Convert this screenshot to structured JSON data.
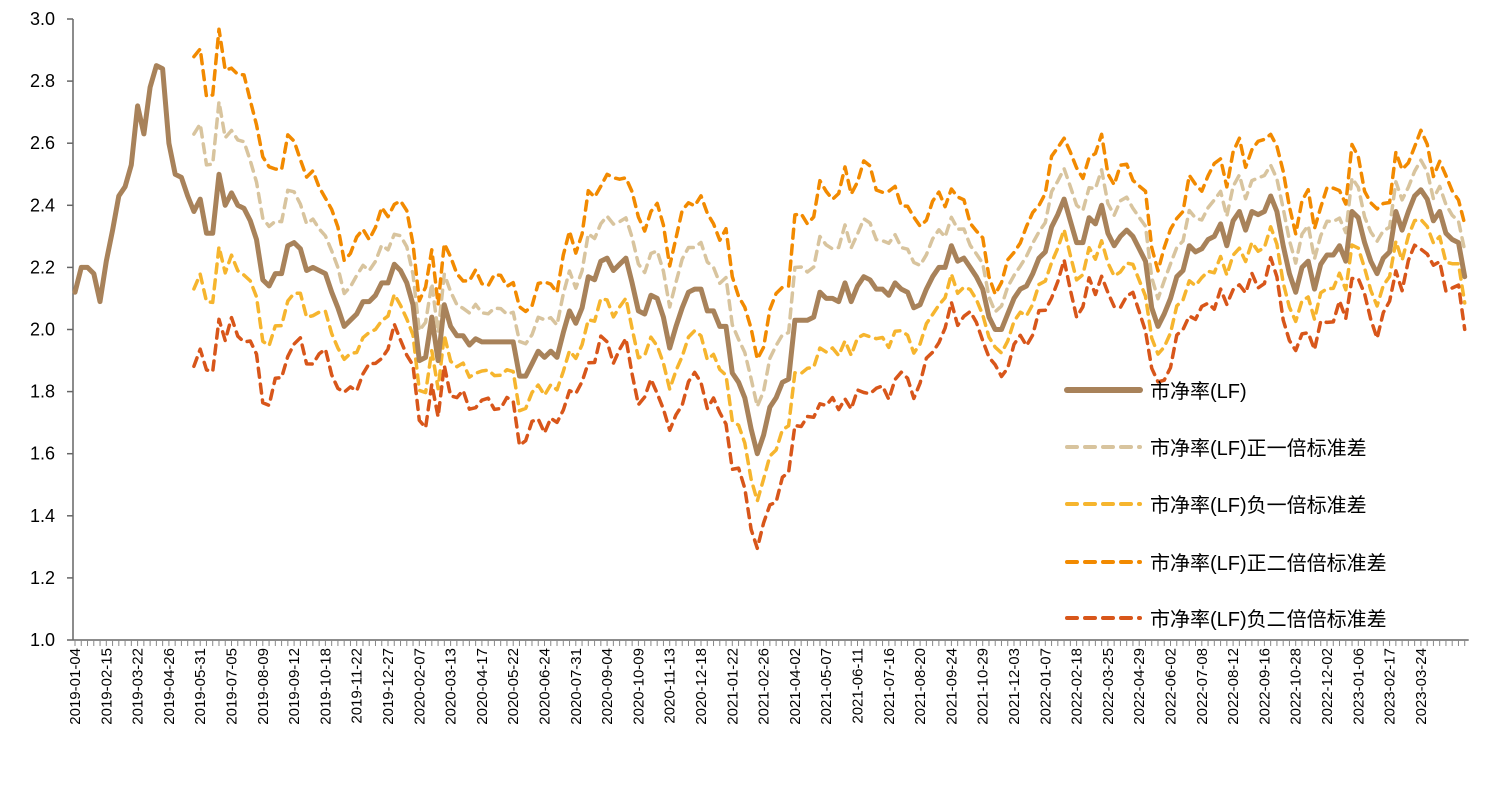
{
  "chart_data": {
    "type": "line",
    "title": "",
    "xlabel": "",
    "ylabel": "",
    "ylim": [
      1.0,
      3.0
    ],
    "ytick_step": 0.2,
    "yticks": [
      "1.0",
      "1.2",
      "1.4",
      "1.6",
      "1.8",
      "2.0",
      "2.2",
      "2.4",
      "2.6",
      "2.8",
      "3.0"
    ],
    "x_tick_every": 5,
    "x_tick_labels": [
      "2019-01-04",
      "2019-02-15",
      "2019-03-22",
      "2019-04-26",
      "2019-05-31",
      "2019-07-05",
      "2019-08-09",
      "2019-09-12",
      "2019-10-18",
      "2019-11-22",
      "2019-12-27",
      "2020-02-07",
      "2020-03-13",
      "2020-04-17",
      "2020-05-22",
      "2020-06-24",
      "2020-07-31",
      "2020-09-04",
      "2020-10-09",
      "2020-11-13",
      "2020-12-18",
      "2021-01-22",
      "2021-02-26",
      "2021-04-02",
      "2021-05-07",
      "2021-06-11",
      "2021-07-16",
      "2021-08-20",
      "2021-09-24",
      "2021-10-29",
      "2021-12-03",
      "2022-01-07",
      "2022-02-18",
      "2022-03-25",
      "2022-04-29",
      "2022-06-02",
      "2022-07-08",
      "2022-08-12",
      "2022-09-16",
      "2022-10-28",
      "2022-12-02",
      "2023-01-06",
      "2023-02-17",
      "2023-03-24"
    ],
    "grid": false,
    "legend_position": "right",
    "series": [
      {
        "name": "市净率(LF)",
        "color": "#A8825A",
        "style": "solid",
        "multiplier": 0,
        "values": [
          2.12,
          2.2,
          2.2,
          2.18,
          2.09,
          2.22,
          2.32,
          2.43,
          2.46,
          2.53,
          2.72,
          2.63,
          2.78,
          2.85,
          2.84,
          2.6,
          2.5,
          2.49,
          2.43,
          2.38,
          2.42,
          2.31,
          2.31,
          2.5,
          2.4,
          2.44,
          2.4,
          2.39,
          2.35,
          2.29,
          2.16,
          2.14,
          2.18,
          2.18,
          2.27,
          2.28,
          2.26,
          2.19,
          2.2,
          2.19,
          2.18,
          2.12,
          2.07,
          2.01,
          2.03,
          2.05,
          2.09,
          2.09,
          2.11,
          2.15,
          2.15,
          2.21,
          2.19,
          2.15,
          2.08,
          1.9,
          1.91,
          2.04,
          1.9,
          2.08,
          2.01,
          1.98,
          1.98,
          1.95,
          1.97,
          1.96,
          1.96,
          1.96,
          1.96,
          1.96,
          1.96,
          1.85,
          1.85,
          1.89,
          1.93,
          1.91,
          1.93,
          1.91,
          1.99,
          2.06,
          2.02,
          2.07,
          2.17,
          2.16,
          2.22,
          2.23,
          2.19,
          2.21,
          2.23,
          2.15,
          2.06,
          2.05,
          2.11,
          2.1,
          2.04,
          1.94,
          2.01,
          2.07,
          2.12,
          2.13,
          2.13,
          2.06,
          2.06,
          2.01,
          2.01,
          1.86,
          1.83,
          1.78,
          1.68,
          1.6,
          1.66,
          1.75,
          1.78,
          1.83,
          1.84,
          2.03,
          2.03,
          2.03,
          2.04,
          2.12,
          2.1,
          2.1,
          2.09,
          2.15,
          2.09,
          2.14,
          2.17,
          2.16,
          2.13,
          2.13,
          2.11,
          2.15,
          2.13,
          2.12,
          2.07,
          2.08,
          2.13,
          2.17,
          2.2,
          2.2,
          2.27,
          2.22,
          2.23,
          2.2,
          2.17,
          2.13,
          2.04,
          2.0,
          2.0,
          2.05,
          2.1,
          2.13,
          2.14,
          2.18,
          2.23,
          2.25,
          2.33,
          2.37,
          2.42,
          2.35,
          2.28,
          2.28,
          2.36,
          2.34,
          2.4,
          2.31,
          2.27,
          2.3,
          2.32,
          2.3,
          2.26,
          2.22,
          2.07,
          2.01,
          2.05,
          2.1,
          2.17,
          2.19,
          2.27,
          2.25,
          2.26,
          2.29,
          2.3,
          2.34,
          2.27,
          2.35,
          2.38,
          2.32,
          2.38,
          2.37,
          2.38,
          2.43,
          2.38,
          2.27,
          2.18,
          2.12,
          2.2,
          2.22,
          2.13,
          2.21,
          2.24,
          2.24,
          2.27,
          2.22,
          2.38,
          2.36,
          2.28,
          2.22,
          2.18,
          2.23,
          2.25,
          2.38,
          2.32,
          2.38,
          2.43,
          2.45,
          2.42,
          2.35,
          2.38,
          2.31,
          2.29,
          2.28,
          2.17
        ]
      },
      {
        "name": "市净率(LF)正一倍标准差",
        "color": "#D8C49E",
        "style": "dashed",
        "multiplier": 1
      },
      {
        "name": "市净率(LF)负一倍标准差",
        "color": "#F6B52E",
        "style": "dashed",
        "multiplier": -1
      },
      {
        "name": "市净率(LF)正二倍倍标准差",
        "color": "#F28A00",
        "style": "dashed",
        "multiplier": 2
      },
      {
        "name": "市净率(LF)负二倍倍标准差",
        "color": "#D8561A",
        "style": "dashed",
        "multiplier": -2
      }
    ],
    "std_band_start_index": 19,
    "std_keypoints": [
      [
        19,
        0.24
      ],
      [
        30,
        0.19
      ],
      [
        43,
        0.115
      ],
      [
        60,
        0.1
      ],
      [
        71,
        0.1
      ],
      [
        87,
        0.14
      ],
      [
        108,
        0.15
      ],
      [
        126,
        0.18
      ],
      [
        146,
        0.065
      ],
      [
        158,
        0.11
      ],
      [
        172,
        0.1
      ],
      [
        191,
        0.11
      ],
      [
        220,
        0.08
      ]
    ]
  }
}
